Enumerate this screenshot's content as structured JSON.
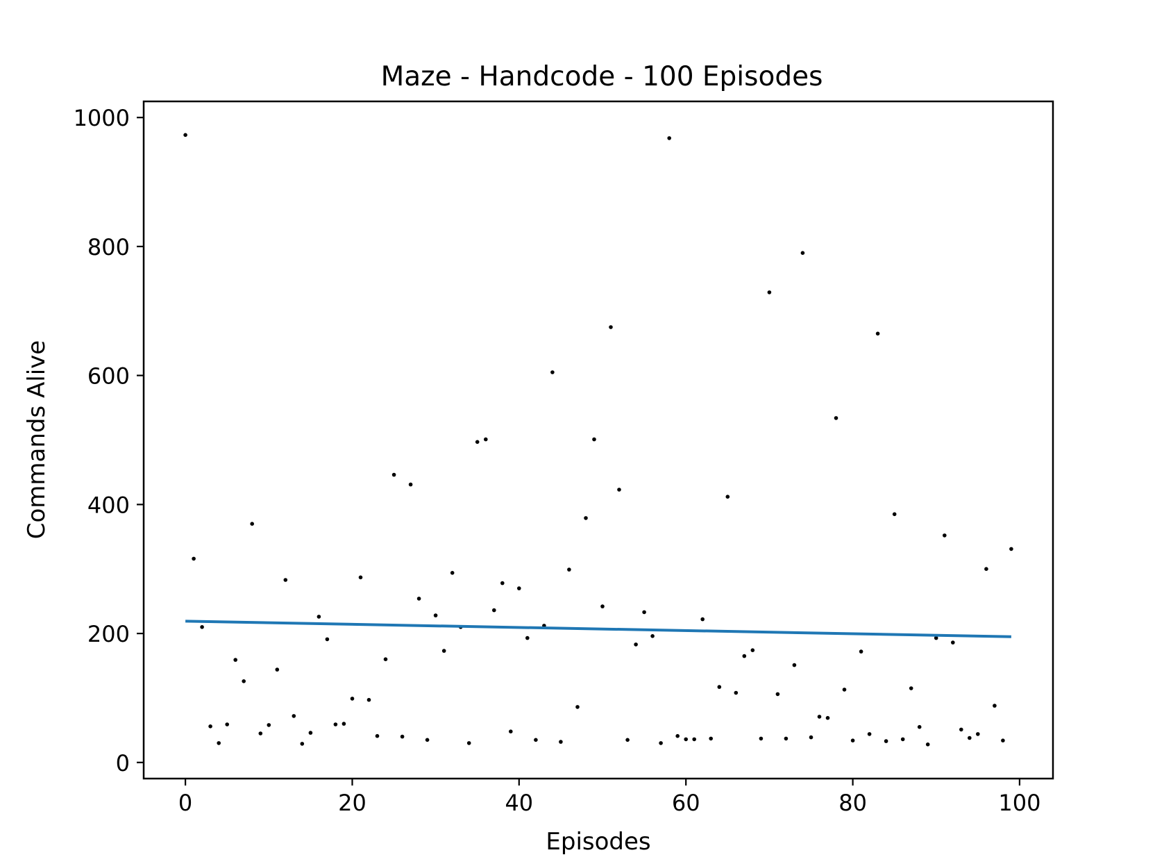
{
  "chart_data": {
    "type": "scatter",
    "title": "Maze - Handcode - 100 Episodes",
    "xlabel": "Episodes",
    "ylabel": "Commands Alive",
    "xlim": [
      -5,
      104
    ],
    "ylim": [
      -25,
      1025
    ],
    "xticks": [
      0,
      20,
      40,
      60,
      80,
      100
    ],
    "yticks": [
      0,
      200,
      400,
      600,
      800,
      1000
    ],
    "grid": false,
    "legend": "none",
    "point_color": "#000000",
    "trend_color": "#1f77b4",
    "trend_line": {
      "x": [
        0,
        99
      ],
      "y": [
        219,
        195
      ]
    },
    "points": {
      "x": [
        0,
        1,
        2,
        3,
        4,
        5,
        6,
        7,
        8,
        9,
        10,
        11,
        12,
        13,
        14,
        15,
        16,
        17,
        18,
        19,
        20,
        21,
        22,
        23,
        24,
        25,
        26,
        27,
        28,
        29,
        30,
        31,
        32,
        33,
        34,
        35,
        36,
        37,
        38,
        39,
        40,
        41,
        42,
        43,
        44,
        45,
        46,
        47,
        48,
        49,
        50,
        51,
        52,
        53,
        54,
        55,
        56,
        57,
        58,
        59,
        60,
        61,
        62,
        63,
        64,
        65,
        66,
        67,
        68,
        69,
        70,
        71,
        72,
        73,
        74,
        75,
        76,
        77,
        78,
        79,
        80,
        81,
        82,
        83,
        84,
        85,
        86,
        87,
        88,
        89,
        90,
        91,
        92,
        93,
        94,
        95,
        96,
        97,
        98,
        99
      ],
      "y": [
        973,
        316,
        210,
        56,
        30,
        59,
        159,
        126,
        370,
        45,
        58,
        144,
        283,
        72,
        29,
        46,
        226,
        191,
        59,
        60,
        99,
        287,
        97,
        41,
        160,
        446,
        40,
        431,
        254,
        35,
        228,
        173,
        294,
        210,
        30,
        497,
        501,
        236,
        278,
        48,
        270,
        193,
        35,
        212,
        605,
        32,
        299,
        86,
        379,
        501,
        242,
        675,
        423,
        35,
        183,
        233,
        196,
        30,
        968,
        41,
        36,
        36,
        222,
        37,
        117,
        412,
        108,
        165,
        174,
        37,
        729,
        106,
        37,
        151,
        790,
        39,
        71,
        69,
        534,
        113,
        34,
        172,
        44,
        665,
        33,
        385,
        36,
        115,
        55,
        28,
        193,
        352,
        186,
        51,
        38,
        44,
        300,
        88,
        34,
        331
      ]
    }
  }
}
